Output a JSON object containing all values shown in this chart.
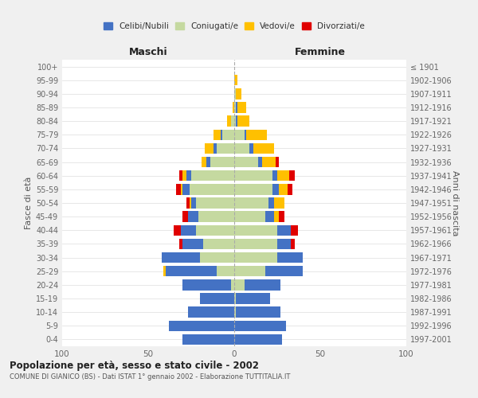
{
  "age_groups": [
    "0-4",
    "5-9",
    "10-14",
    "15-19",
    "20-24",
    "25-29",
    "30-34",
    "35-39",
    "40-44",
    "45-49",
    "50-54",
    "55-59",
    "60-64",
    "65-69",
    "70-74",
    "75-79",
    "80-84",
    "85-89",
    "90-94",
    "95-99",
    "100+"
  ],
  "birth_years": [
    "1997-2001",
    "1992-1996",
    "1987-1991",
    "1982-1986",
    "1977-1981",
    "1972-1976",
    "1967-1971",
    "1962-1966",
    "1957-1961",
    "1952-1956",
    "1947-1951",
    "1942-1946",
    "1937-1941",
    "1932-1936",
    "1927-1931",
    "1922-1926",
    "1917-1921",
    "1912-1916",
    "1907-1911",
    "1902-1906",
    "≤ 1901"
  ],
  "maschi": {
    "celibi": [
      30,
      38,
      27,
      20,
      28,
      30,
      22,
      12,
      9,
      6,
      3,
      4,
      3,
      2,
      2,
      1,
      0,
      0,
      0,
      0,
      0
    ],
    "coniugati": [
      0,
      0,
      0,
      0,
      2,
      10,
      20,
      18,
      22,
      21,
      22,
      26,
      25,
      14,
      10,
      7,
      2,
      0,
      0,
      0,
      0
    ],
    "vedovi": [
      0,
      0,
      0,
      0,
      0,
      1,
      0,
      0,
      0,
      0,
      1,
      1,
      2,
      3,
      5,
      4,
      2,
      1,
      0,
      0,
      0
    ],
    "divorziati": [
      0,
      0,
      0,
      0,
      0,
      0,
      0,
      2,
      4,
      3,
      2,
      3,
      2,
      0,
      0,
      0,
      0,
      0,
      0,
      0,
      0
    ]
  },
  "femmine": {
    "nubili": [
      28,
      30,
      26,
      20,
      21,
      22,
      15,
      8,
      8,
      5,
      3,
      4,
      3,
      2,
      2,
      1,
      1,
      1,
      0,
      0,
      0
    ],
    "coniugate": [
      0,
      0,
      1,
      1,
      6,
      18,
      25,
      25,
      25,
      18,
      20,
      22,
      22,
      14,
      9,
      6,
      1,
      1,
      1,
      0,
      0
    ],
    "vedove": [
      0,
      0,
      0,
      0,
      0,
      0,
      0,
      0,
      0,
      3,
      6,
      5,
      7,
      8,
      12,
      12,
      7,
      5,
      3,
      2,
      0
    ],
    "divorziate": [
      0,
      0,
      0,
      0,
      0,
      0,
      0,
      2,
      4,
      3,
      0,
      3,
      3,
      2,
      0,
      0,
      0,
      0,
      0,
      0,
      0
    ]
  },
  "color_celibi": "#4472c4",
  "color_coniugati": "#c5d9a0",
  "color_vedovi": "#ffc000",
  "color_divorziati": "#e00000",
  "title_main": "Popolazione per età, sesso e stato civile - 2002",
  "subtitle": "COMUNE DI GIANICO (BS) - Dati ISTAT 1° gennaio 2002 - Elaborazione TUTTITALIA.IT",
  "xlabel_left": "Maschi",
  "xlabel_right": "Femmine",
  "ylabel_left": "Fasce di età",
  "ylabel_right": "Anni di nascita",
  "xlim": 100,
  "bg_color": "#f0f0f0",
  "plot_bg": "#ffffff",
  "legend_labels": [
    "Celibi/Nubili",
    "Coniugati/e",
    "Vedovi/e",
    "Divorziati/e"
  ]
}
